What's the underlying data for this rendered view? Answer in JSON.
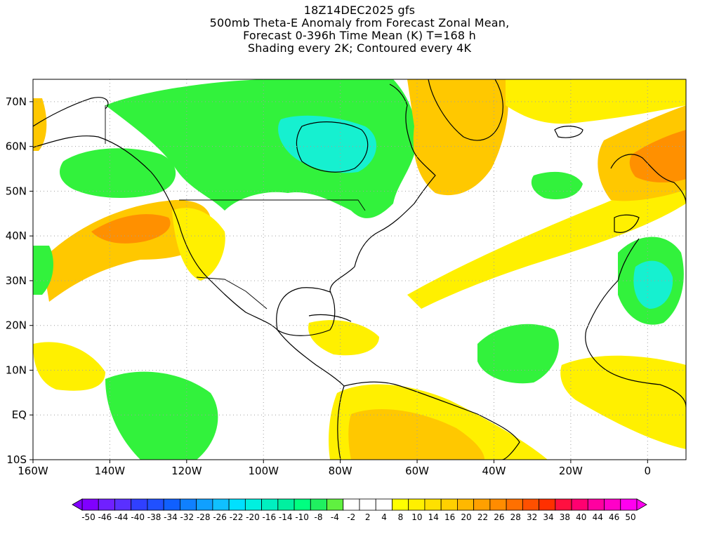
{
  "title": {
    "line1": "18Z14DEC2025 gfs",
    "line2": "500mb Theta-E Anomaly from Forecast Zonal Mean,",
    "line3": "Forecast 0-396h Time Mean (K) T=168 h",
    "line4": "Shading every 2K; Contoured every 4K"
  },
  "map": {
    "lon_range": [
      -160,
      10
    ],
    "lat_range": [
      -10,
      75
    ],
    "lon_ticks": [
      "160W",
      "140W",
      "120W",
      "100W",
      "80W",
      "60W",
      "40W",
      "20W",
      "0"
    ],
    "lat_ticks": [
      "10S",
      "EQ",
      "10N",
      "20N",
      "30N",
      "40N",
      "50N",
      "60N",
      "70N"
    ],
    "grid": "dotted"
  },
  "colorbar": {
    "labels": [
      "-50",
      "-46",
      "-44",
      "-40",
      "-38",
      "-34",
      "-32",
      "-28",
      "-26",
      "-22",
      "-20",
      "-16",
      "-14",
      "-10",
      "-8",
      "-4",
      "-2",
      "2",
      "4",
      "8",
      "10",
      "14",
      "16",
      "20",
      "22",
      "26",
      "28",
      "32",
      "34",
      "38",
      "40",
      "44",
      "46",
      "50"
    ],
    "colors": [
      "#8000ff",
      "#7020ff",
      "#5a30ff",
      "#3040ff",
      "#2050ff",
      "#1060ff",
      "#1080ff",
      "#10a0ff",
      "#10c0ff",
      "#00e0ff",
      "#00f0e0",
      "#00f0c0",
      "#00f0a0",
      "#00ff80",
      "#20f060",
      "#60f040",
      "#ffffff",
      "#ffffff",
      "#ffffff",
      "#ffff00",
      "#fff000",
      "#ffe000",
      "#ffd000",
      "#ffb800",
      "#ffa000",
      "#ff8c00",
      "#ff7000",
      "#ff5000",
      "#ff3000",
      "#ff1040",
      "#ff0070",
      "#ff00a0",
      "#ff00c8",
      "#ff00f0"
    ]
  },
  "fields": {
    "green": "#32f23c",
    "cyan": "#16f0d0",
    "yellow": "#fff000",
    "orange": "#ffc800",
    "dark_orange": "#ff9000",
    "coast": "#000000"
  }
}
